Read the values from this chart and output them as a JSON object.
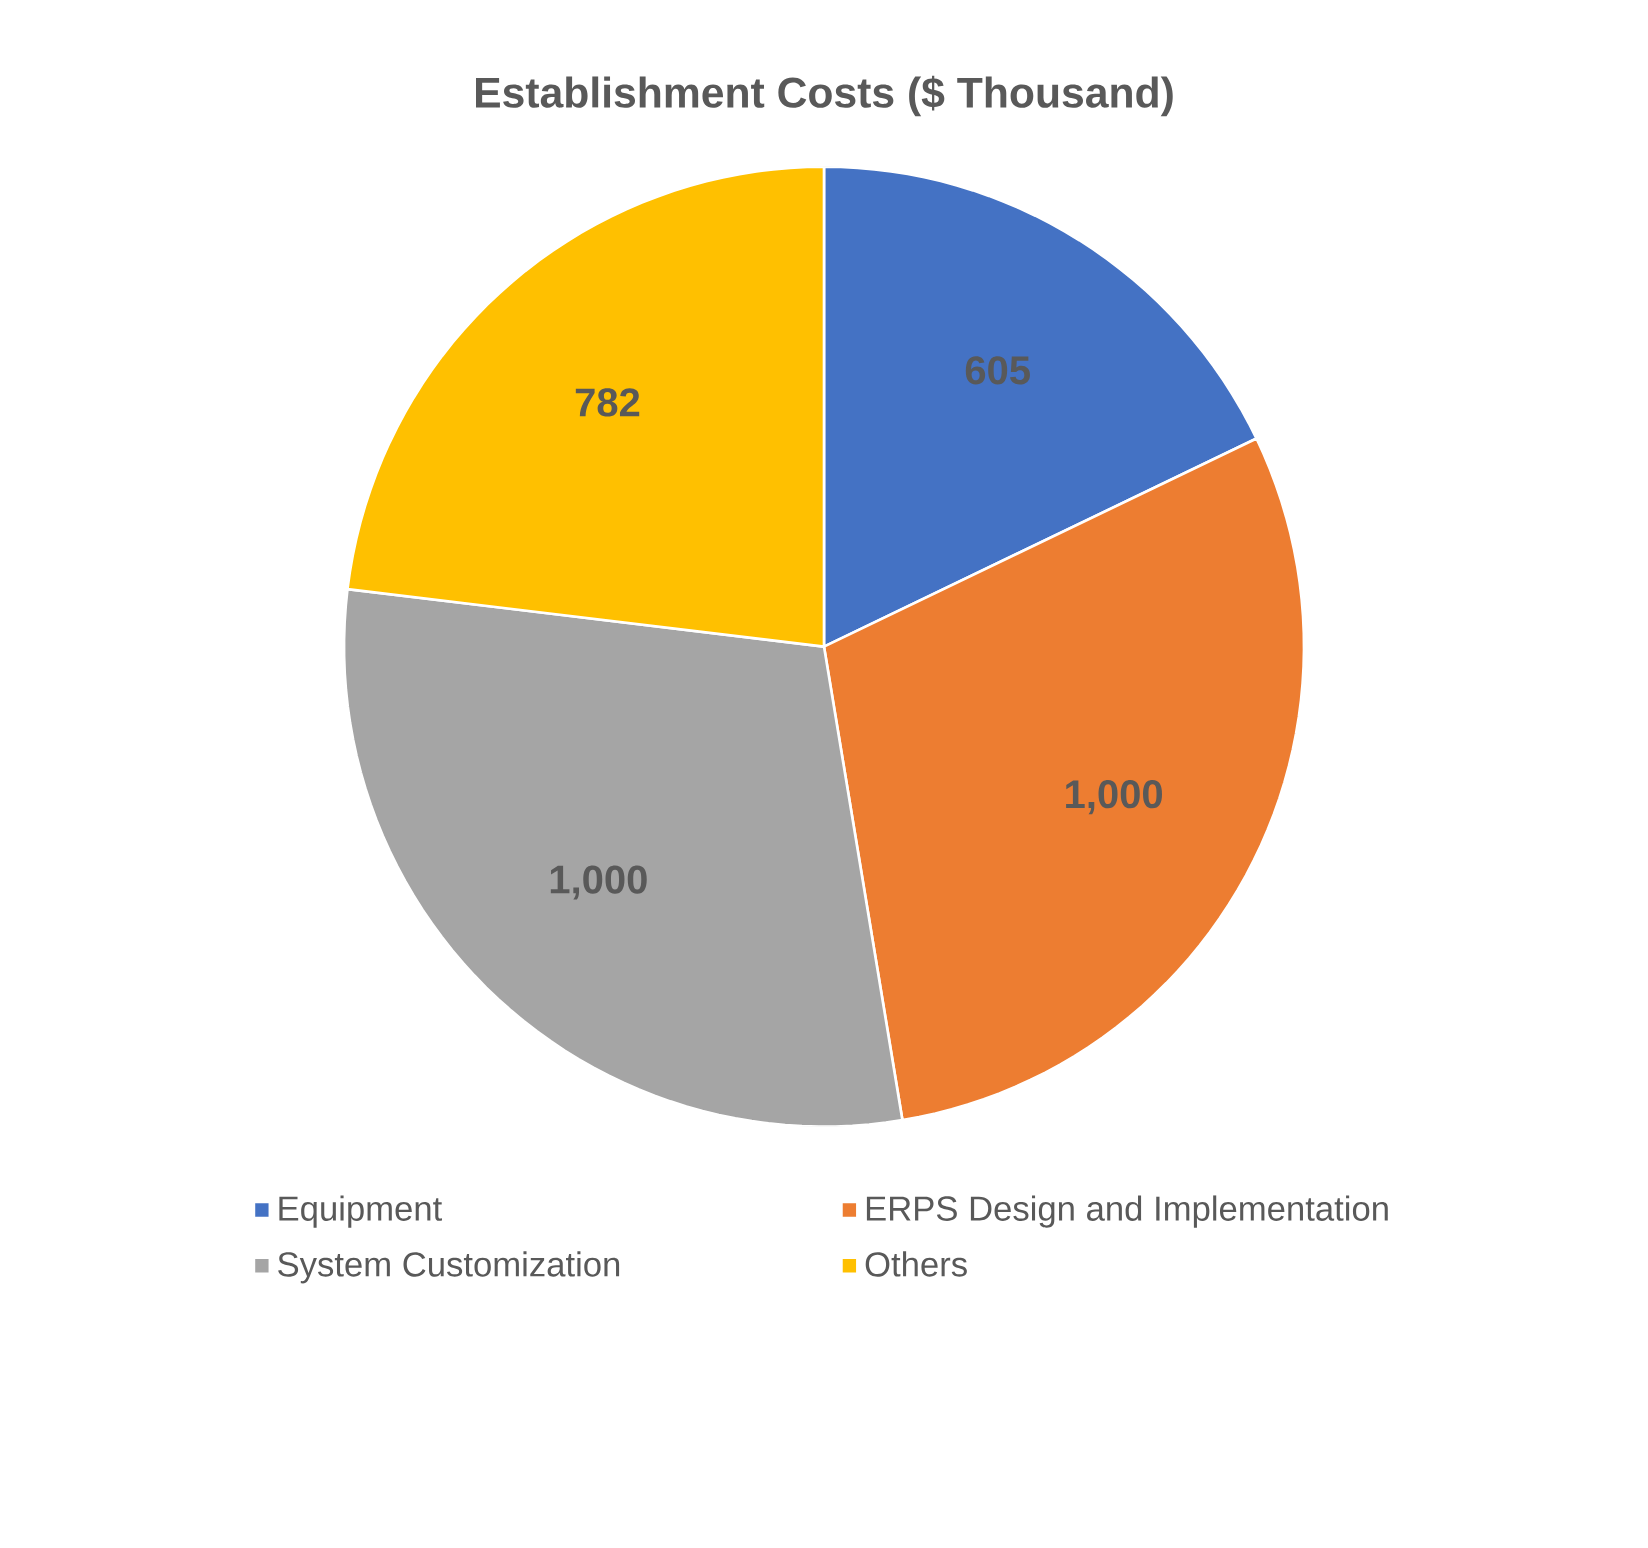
{
  "chart_data": {
    "type": "pie",
    "title": "Establishment Costs ($ Thousand)",
    "categories": [
      "Equipment",
      "ERPS Design and Implementation",
      "System Customization",
      "Others"
    ],
    "values": [
      605,
      1000,
      1000,
      782
    ],
    "colors": [
      "#4472c4",
      "#ed7d31",
      "#a5a5a5",
      "#ffc000"
    ],
    "value_labels": [
      "605",
      "1,000",
      "1,000",
      "782"
    ],
    "legend": "bottom"
  }
}
